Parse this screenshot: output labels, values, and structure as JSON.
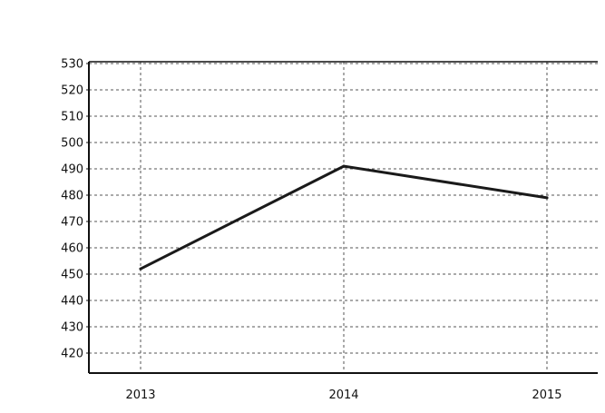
{
  "chart_data": {
    "type": "line",
    "title": "",
    "xlabel": "",
    "ylabel": "",
    "categories": [
      "2013",
      "2014",
      "2015"
    ],
    "series": [
      {
        "values": [
          452,
          491,
          479
        ]
      }
    ],
    "ylim": [
      420,
      530
    ],
    "y_ticks": [
      420,
      430,
      440,
      450,
      460,
      470,
      480,
      490,
      500,
      510,
      520,
      530
    ],
    "grid": true,
    "grid_style": "dashed",
    "line_color": "#1a1a1a",
    "axis_color": "#111111",
    "grid_color": "#555555"
  }
}
